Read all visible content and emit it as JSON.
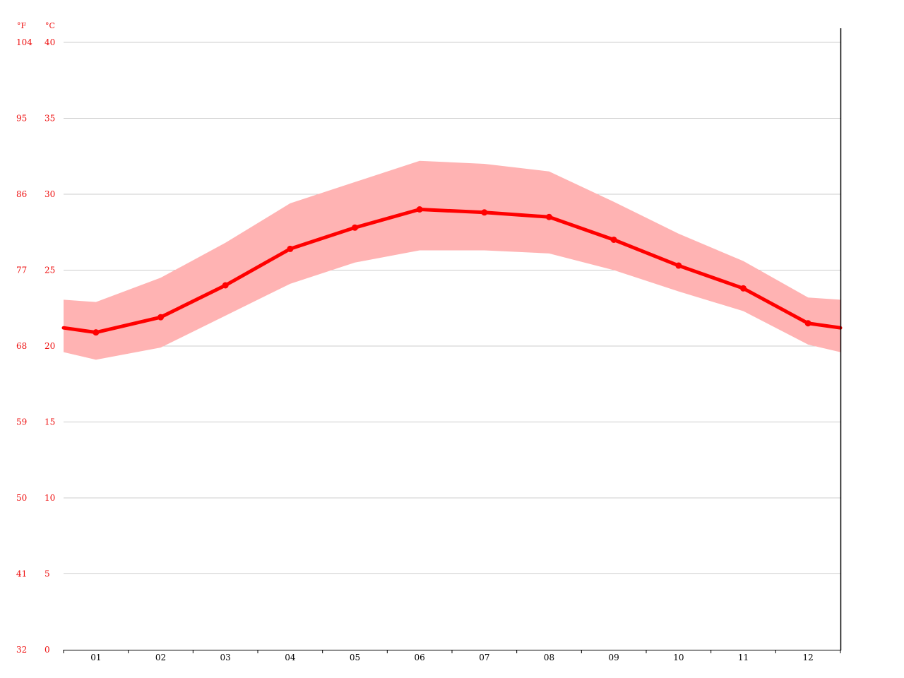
{
  "chart_data": {
    "type": "line",
    "x_categories": [
      "01",
      "02",
      "03",
      "04",
      "05",
      "06",
      "07",
      "08",
      "09",
      "10",
      "11",
      "12"
    ],
    "series": [
      {
        "values": [
          20.9,
          21.9,
          24.0,
          26.4,
          27.8,
          29.0,
          28.8,
          28.5,
          27.0,
          25.3,
          23.8,
          21.5
        ]
      }
    ],
    "band": {
      "upper": [
        22.9,
        24.5,
        26.8,
        29.4,
        30.8,
        32.2,
        32.0,
        31.5,
        29.5,
        27.4,
        25.6,
        23.2
      ],
      "lower": [
        19.1,
        19.9,
        22.0,
        24.1,
        25.5,
        26.3,
        26.3,
        26.1,
        25.0,
        23.6,
        22.3,
        20.1
      ]
    },
    "y_left_unit": "°F",
    "y_right_unit": "°C",
    "y_celsius_ticks": [
      "40",
      "35",
      "30",
      "25",
      "20",
      "15",
      "10",
      "5",
      "0"
    ],
    "y_fahrenheit_ticks": [
      "104",
      "95",
      "86",
      "77",
      "68",
      "59",
      "50",
      "41",
      "32"
    ],
    "ylim_celsius": [
      0,
      40
    ],
    "grid": true,
    "colors": {
      "line": "#ff0000",
      "band": "#ffb3b3",
      "axis_label": "#ee1111",
      "grid": "#cccccc",
      "axis": "#000000"
    }
  }
}
